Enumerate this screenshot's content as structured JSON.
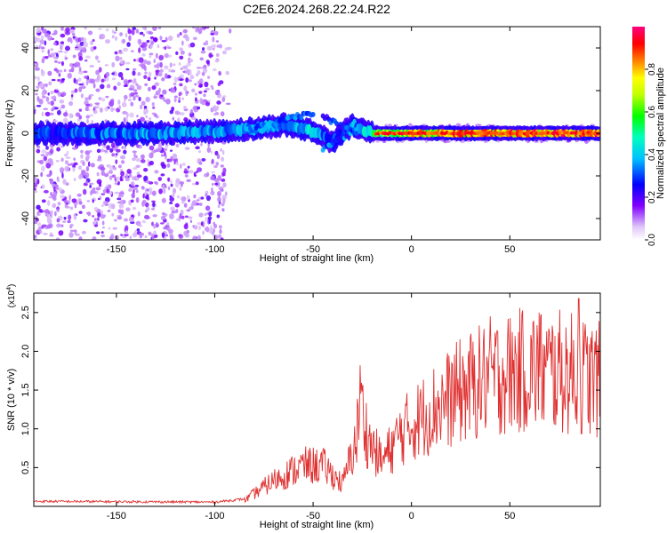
{
  "title": "C2E6.2024.268.22.24.R22",
  "chart_data": [
    {
      "type": "heatmap",
      "xlabel": "Height of straight line (km)",
      "ylabel": "Frequency (Hz)",
      "xlim": [
        -192,
        96
      ],
      "ylim": [
        -50,
        50
      ],
      "xticks": [
        -150,
        -100,
        -50,
        0,
        50
      ],
      "yticks": [
        -40,
        -20,
        0,
        20,
        40
      ],
      "colorbar": {
        "label": "Normalized spectral amplitude",
        "range": [
          0,
          1
        ],
        "ticks": [
          "0.0",
          "0.2",
          "0.4",
          "0.6",
          "0.8"
        ]
      },
      "signal_track": [
        {
          "x": -190,
          "y": 0,
          "a": 0.3
        },
        {
          "x": -160,
          "y": 0,
          "a": 0.35
        },
        {
          "x": -130,
          "y": 0,
          "a": 0.4
        },
        {
          "x": -100,
          "y": 1,
          "a": 0.4
        },
        {
          "x": -80,
          "y": 2,
          "a": 0.4
        },
        {
          "x": -65,
          "y": 4,
          "a": 0.35
        },
        {
          "x": -50,
          "y": 1,
          "a": 0.45
        },
        {
          "x": -40,
          "y": -4,
          "a": 0.3
        },
        {
          "x": -30,
          "y": 4,
          "a": 0.35
        },
        {
          "x": -20,
          "y": 0,
          "a": 0.6
        },
        {
          "x": 0,
          "y": 0,
          "a": 0.8
        },
        {
          "x": 50,
          "y": 0,
          "a": 0.9
        },
        {
          "x": 95,
          "y": 0,
          "a": 0.9
        }
      ]
    },
    {
      "type": "line",
      "xlabel": "Height of straight line (km)",
      "ylabel": "SNR (10 * v/v)",
      "y_multiplier": "(x10",
      "y_multiplier_exp": "4",
      "xlim": [
        -192,
        96
      ],
      "ylim": [
        0,
        2.75
      ],
      "xticks": [
        -150,
        -100,
        -50,
        0,
        50
      ],
      "yticks": [
        "0.5",
        "1.0",
        "1.5",
        "2.0",
        "2.5"
      ],
      "color": "#e03030",
      "envelope": [
        {
          "x": -192,
          "y": 0.05
        },
        {
          "x": -100,
          "y": 0.04
        },
        {
          "x": -85,
          "y": 0.08
        },
        {
          "x": -70,
          "y": 0.35
        },
        {
          "x": -55,
          "y": 0.55
        },
        {
          "x": -45,
          "y": 0.55
        },
        {
          "x": -35,
          "y": 0.3
        },
        {
          "x": -28,
          "y": 0.9
        },
        {
          "x": -26,
          "y": 1.4
        },
        {
          "x": -22,
          "y": 0.9
        },
        {
          "x": -15,
          "y": 0.6
        },
        {
          "x": -5,
          "y": 1.0
        },
        {
          "x": 10,
          "y": 1.3
        },
        {
          "x": 25,
          "y": 1.55
        },
        {
          "x": 40,
          "y": 1.75
        },
        {
          "x": 60,
          "y": 1.85
        },
        {
          "x": 80,
          "y": 1.8
        },
        {
          "x": 96,
          "y": 1.7
        }
      ],
      "peaks": [
        {
          "x": -26,
          "y": 1.82
        },
        {
          "x": 85,
          "y": 2.68
        },
        {
          "x": 65,
          "y": 2.5
        },
        {
          "x": 40,
          "y": 2.45
        }
      ]
    }
  ]
}
